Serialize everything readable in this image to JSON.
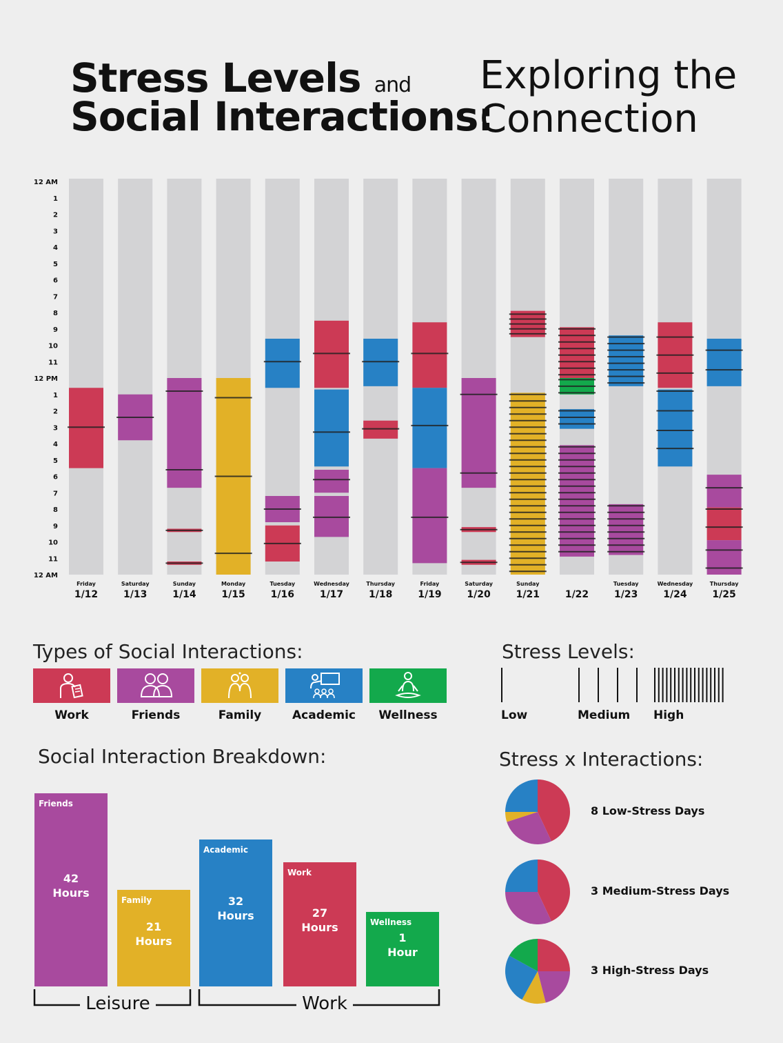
{
  "title": {
    "line1": "Stress Levels",
    "and": "and",
    "line2": "Social Interactions:",
    "right1": "Exploring the",
    "right2": "Connection"
  },
  "colors": {
    "Work": "#cc3a55",
    "Friends": "#a84a9e",
    "Family": "#e2b127",
    "Academic": "#2781c5",
    "Wellness": "#13a94c",
    "background_column": "#d3d3d5",
    "page": "#eeeeee"
  },
  "hour_labels": [
    "12 AM",
    "1",
    "2",
    "3",
    "4",
    "5",
    "6",
    "7",
    "8",
    "9",
    "10",
    "11",
    "12 PM",
    "1",
    "2",
    "3",
    "4",
    "5",
    "6",
    "7",
    "8",
    "9",
    "10",
    "11",
    "12 AM"
  ],
  "chart_data": [
    {
      "type": "timeline",
      "y_unit": "hour of day",
      "ylim": [
        0,
        24
      ],
      "days": [
        {
          "name": "Friday",
          "date": "1/12",
          "blocks": [
            {
              "cat": "Work",
              "start": 12.6,
              "end": 17.5,
              "stress": [
                15.0
              ]
            }
          ]
        },
        {
          "name": "Saturday",
          "date": "1/13",
          "blocks": [
            {
              "cat": "Friends",
              "start": 13.0,
              "end": 15.8,
              "stress": [
                14.4
              ]
            }
          ]
        },
        {
          "name": "Sunday",
          "date": "1/14",
          "blocks": [
            {
              "cat": "Friends",
              "start": 12.0,
              "end": 18.7,
              "stress": [
                12.8,
                17.6
              ]
            },
            {
              "cat": "Work",
              "start": 21.2,
              "end": 21.4,
              "stress": [
                21.3
              ]
            },
            {
              "cat": "Work",
              "start": 23.2,
              "end": 23.4,
              "stress": [
                23.3
              ]
            }
          ]
        },
        {
          "name": "Monday",
          "date": "1/15",
          "blocks": [
            {
              "cat": "Family",
              "start": 12.0,
              "end": 24.0,
              "stress": [
                13.2,
                18.0,
                22.7
              ]
            }
          ]
        },
        {
          "name": "Tuesday",
          "date": "1/16",
          "blocks": [
            {
              "cat": "Academic",
              "start": 9.6,
              "end": 12.6,
              "stress": [
                11.0
              ]
            },
            {
              "cat": "Friends",
              "start": 19.2,
              "end": 20.8,
              "stress": [
                20.0
              ]
            },
            {
              "cat": "Work",
              "start": 21.0,
              "end": 23.2,
              "stress": [
                22.1
              ]
            }
          ]
        },
        {
          "name": "Wednesday",
          "date": "1/17",
          "blocks": [
            {
              "cat": "Work",
              "start": 8.5,
              "end": 12.6,
              "stress": [
                10.5
              ]
            },
            {
              "cat": "Academic",
              "start": 12.7,
              "end": 17.4,
              "stress": [
                15.3
              ]
            },
            {
              "cat": "Friends",
              "start": 17.6,
              "end": 19.0,
              "stress": [
                18.2
              ]
            },
            {
              "cat": "Friends",
              "start": 19.2,
              "end": 21.7,
              "stress": [
                20.5
              ]
            }
          ]
        },
        {
          "name": "Thursday",
          "date": "1/18",
          "blocks": [
            {
              "cat": "Academic",
              "start": 9.6,
              "end": 12.5,
              "stress": [
                11.0
              ]
            },
            {
              "cat": "Work",
              "start": 14.6,
              "end": 15.7,
              "stress": [
                15.1
              ]
            }
          ]
        },
        {
          "name": "Friday",
          "date": "1/19",
          "blocks": [
            {
              "cat": "Work",
              "start": 8.6,
              "end": 12.6,
              "stress": [
                10.5
              ]
            },
            {
              "cat": "Academic",
              "start": 12.6,
              "end": 17.5,
              "stress": [
                14.9
              ]
            },
            {
              "cat": "Friends",
              "start": 17.5,
              "end": 23.3,
              "stress": [
                20.5
              ]
            }
          ]
        },
        {
          "name": "Saturday",
          "date": "1/20",
          "blocks": [
            {
              "cat": "Friends",
              "start": 12.0,
              "end": 18.7,
              "stress": [
                13.0,
                17.8
              ]
            },
            {
              "cat": "Work",
              "start": 21.1,
              "end": 21.4,
              "stress": [
                21.25
              ]
            },
            {
              "cat": "Work",
              "start": 23.1,
              "end": 23.4,
              "stress": [
                23.25
              ]
            }
          ]
        },
        {
          "name": "Sunday",
          "date": "1/21",
          "blocks": [
            {
              "cat": "Work",
              "start": 7.9,
              "end": 9.5,
              "stress": [
                8.1,
                8.4,
                8.7,
                9.0,
                9.3
              ]
            },
            {
              "cat": "Family",
              "start": 12.9,
              "end": 24.0,
              "stress": [
                13.0,
                13.4,
                13.8,
                14.2,
                14.6,
                15.0,
                15.4,
                15.8,
                16.2,
                16.6,
                17.0,
                17.4,
                17.8,
                18.2,
                18.6,
                19.0,
                19.4,
                19.8,
                20.2,
                20.6,
                21.0,
                21.4,
                21.8,
                22.2,
                22.6,
                23.0,
                23.4,
                23.8
              ]
            }
          ]
        },
        {
          "name": "",
          "date": "1/22",
          "blocks": [
            {
              "cat": "Work",
              "start": 8.9,
              "end": 12.0,
              "stress": [
                9.0,
                9.4,
                9.8,
                10.2,
                10.6,
                11.0,
                11.4,
                11.8
              ]
            },
            {
              "cat": "Wellness",
              "start": 12.0,
              "end": 13.0,
              "stress": [
                12.1,
                12.5,
                12.9
              ]
            },
            {
              "cat": "Academic",
              "start": 13.9,
              "end": 15.1,
              "stress": [
                14.0,
                14.4,
                14.8
              ]
            },
            {
              "cat": "Friends",
              "start": 16.1,
              "end": 22.9,
              "stress": [
                16.2,
                16.6,
                17.0,
                17.4,
                17.8,
                18.2,
                18.6,
                19.0,
                19.4,
                19.8,
                20.2,
                20.6,
                21.0,
                21.4,
                21.8,
                22.2,
                22.6
              ]
            }
          ]
        },
        {
          "name": "Tuesday",
          "date": "1/23",
          "blocks": [
            {
              "cat": "Academic",
              "start": 9.4,
              "end": 12.5,
              "stress": [
                9.5,
                9.9,
                10.3,
                10.7,
                11.1,
                11.5,
                11.9,
                12.3
              ]
            },
            {
              "cat": "Friends",
              "start": 19.7,
              "end": 22.8,
              "stress": [
                19.8,
                20.2,
                20.6,
                21.0,
                21.4,
                21.8,
                22.2,
                22.6
              ]
            }
          ]
        },
        {
          "name": "Wednesday",
          "date": "1/24",
          "blocks": [
            {
              "cat": "Work",
              "start": 8.6,
              "end": 12.6,
              "stress": [
                9.5,
                10.6,
                11.7
              ]
            },
            {
              "cat": "Academic",
              "start": 12.7,
              "end": 17.4,
              "stress": [
                12.8,
                14.0,
                15.2,
                16.3
              ]
            }
          ]
        },
        {
          "name": "Thursday",
          "date": "1/25",
          "blocks": [
            {
              "cat": "Academic",
              "start": 9.6,
              "end": 12.5,
              "stress": [
                10.3,
                11.5
              ]
            },
            {
              "cat": "Friends",
              "start": 17.9,
              "end": 19.9,
              "stress": [
                18.7
              ]
            },
            {
              "cat": "Work",
              "start": 19.9,
              "end": 21.9,
              "stress": [
                20.0,
                21.1
              ]
            },
            {
              "cat": "Friends",
              "start": 21.9,
              "end": 24.0,
              "stress": [
                22.5,
                23.6
              ]
            }
          ]
        }
      ]
    },
    {
      "type": "bar",
      "categories": [
        "Friends",
        "Family",
        "Academic",
        "Work",
        "Wellness"
      ],
      "values": [
        42,
        21,
        32,
        27,
        1
      ],
      "value_labels": [
        [
          "42",
          "Hours"
        ],
        [
          "21",
          "Hours"
        ],
        [
          "32",
          "Hours"
        ],
        [
          "27",
          "Hours"
        ],
        [
          "1",
          "Hour"
        ]
      ],
      "groups": [
        {
          "label": "Leisure",
          "categories": [
            "Friends",
            "Family"
          ]
        },
        {
          "label": "Work",
          "categories": [
            "Academic",
            "Work",
            "Wellness"
          ]
        }
      ],
      "ylim": [
        0,
        42
      ]
    },
    {
      "type": "pie",
      "pies": [
        {
          "label": "8 Low-Stress Days",
          "slices": [
            {
              "cat": "Work",
              "value": 43
            },
            {
              "cat": "Friends",
              "value": 27
            },
            {
              "cat": "Family",
              "value": 5
            },
            {
              "cat": "Academic",
              "value": 25
            }
          ]
        },
        {
          "label": "3 Medium-Stress Days",
          "slices": [
            {
              "cat": "Work",
              "value": 43
            },
            {
              "cat": "Friends",
              "value": 32
            },
            {
              "cat": "Academic",
              "value": 25
            }
          ]
        },
        {
          "label": "3 High-Stress Days",
          "slices": [
            {
              "cat": "Work",
              "value": 25
            },
            {
              "cat": "Friends",
              "value": 21
            },
            {
              "cat": "Family",
              "value": 12
            },
            {
              "cat": "Academic",
              "value": 25
            },
            {
              "cat": "Wellness",
              "value": 17
            }
          ]
        }
      ]
    }
  ],
  "types_section": {
    "title": "Types of Social Interactions:",
    "items": [
      {
        "label": "Work",
        "color": "#cc3a55",
        "icon": "work-icon"
      },
      {
        "label": "Friends",
        "color": "#a84a9e",
        "icon": "friends-icon"
      },
      {
        "label": "Family",
        "color": "#e2b127",
        "icon": "family-icon"
      },
      {
        "label": "Academic",
        "color": "#2781c5",
        "icon": "academic-icon"
      },
      {
        "label": "Wellness",
        "color": "#13a94c",
        "icon": "wellness-icon"
      }
    ]
  },
  "stress_section": {
    "title": "Stress Levels:",
    "levels": [
      {
        "label": "Low",
        "lines": 1
      },
      {
        "label": "Medium",
        "lines": 4
      },
      {
        "label": "High",
        "lines": 18
      }
    ]
  },
  "breakdown_section": {
    "title": "Social Interaction Breakdown:"
  },
  "pies_section": {
    "title": "Stress x Interactions:"
  }
}
